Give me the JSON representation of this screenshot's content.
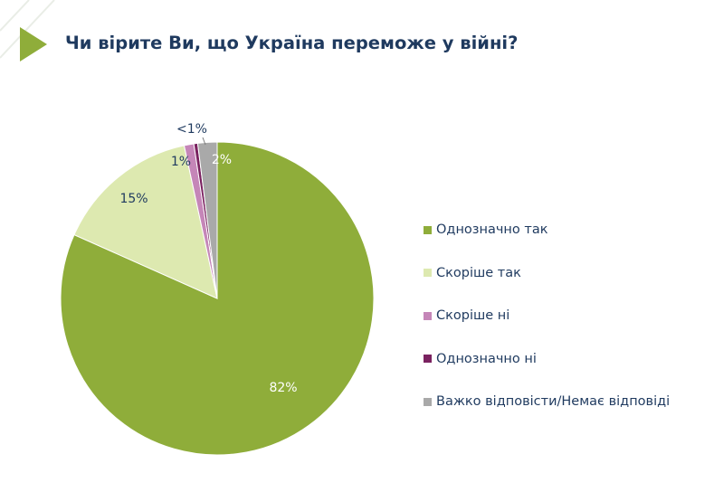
{
  "header": {
    "title": "Чи вірите Ви, що Україна переможе у війні?"
  },
  "colors": {
    "accent": "#8fad3a",
    "title": "#1f3a5f"
  },
  "chart_data": {
    "type": "pie",
    "title": "Чи вірите Ви, що Україна переможе у війні?",
    "start_angle_deg": 0,
    "direction": "clockwise",
    "legend_position": "right",
    "slices": [
      {
        "name": "Однозначно так",
        "value": 82,
        "label": "82%",
        "color": "#8fad3a"
      },
      {
        "name": "Скоріше так",
        "value": 15,
        "label": "15%",
        "color": "#dde9b0"
      },
      {
        "name": "Скоріше ні",
        "value": 1,
        "label": "1%",
        "color": "#c586b8"
      },
      {
        "name": "Однозначно ні",
        "value": 0.4,
        "label": "<1%",
        "color": "#7a2260"
      },
      {
        "name": "Важко відповісти/Немає відповіді",
        "value": 2,
        "label": "2%",
        "color": "#a9a9a9"
      }
    ]
  }
}
